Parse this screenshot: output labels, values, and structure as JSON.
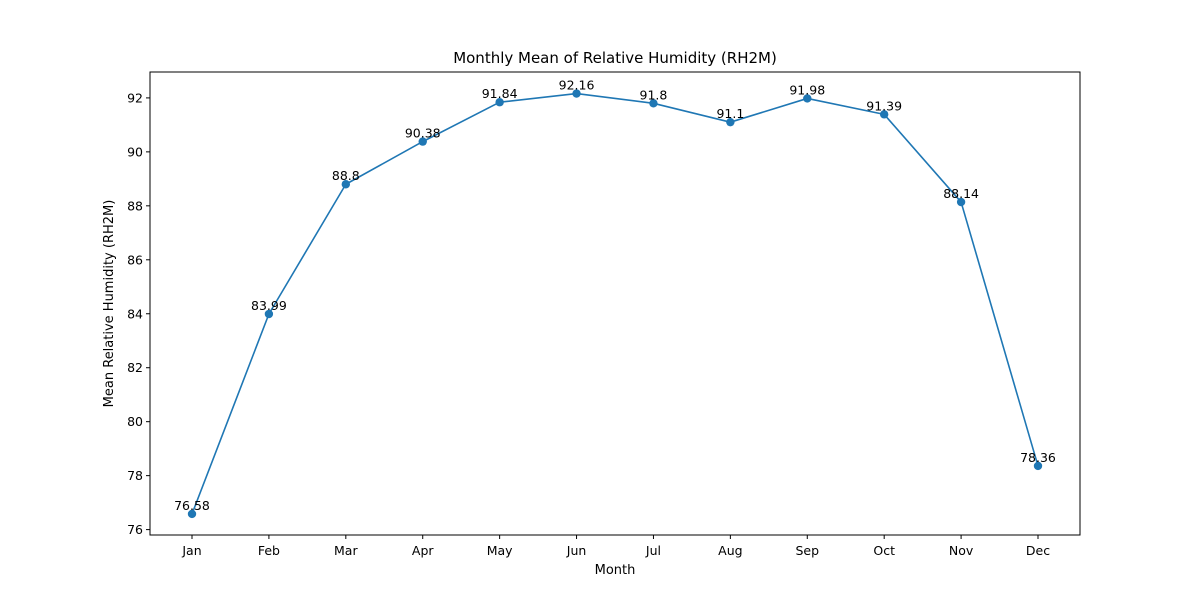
{
  "chart_data": {
    "type": "line",
    "title": "Monthly Mean of Relative Humidity (RH2M)",
    "xlabel": "Month",
    "ylabel": "Mean Relative Humidity (RH2M)",
    "categories": [
      "Jan",
      "Feb",
      "Mar",
      "Apr",
      "May",
      "Jun",
      "Jul",
      "Aug",
      "Sep",
      "Oct",
      "Nov",
      "Dec"
    ],
    "series": [
      {
        "values": [
          76.58,
          83.99,
          88.8,
          90.38,
          91.84,
          92.16,
          91.8,
          91.1,
          91.98,
          91.39,
          88.14,
          78.36
        ],
        "labels": [
          "76.58",
          "83.99",
          "88.8",
          "90.38",
          "91.84",
          "92.16",
          "91.8",
          "91.1",
          "91.98",
          "91.39",
          "88.14",
          "78.36"
        ],
        "color": "#1f77b4"
      }
    ],
    "yticks": [
      "76",
      "78",
      "80",
      "82",
      "84",
      "86",
      "88",
      "90",
      "92"
    ],
    "ylim": [
      75.8,
      92.96
    ],
    "grid": false,
    "legend": "none"
  }
}
